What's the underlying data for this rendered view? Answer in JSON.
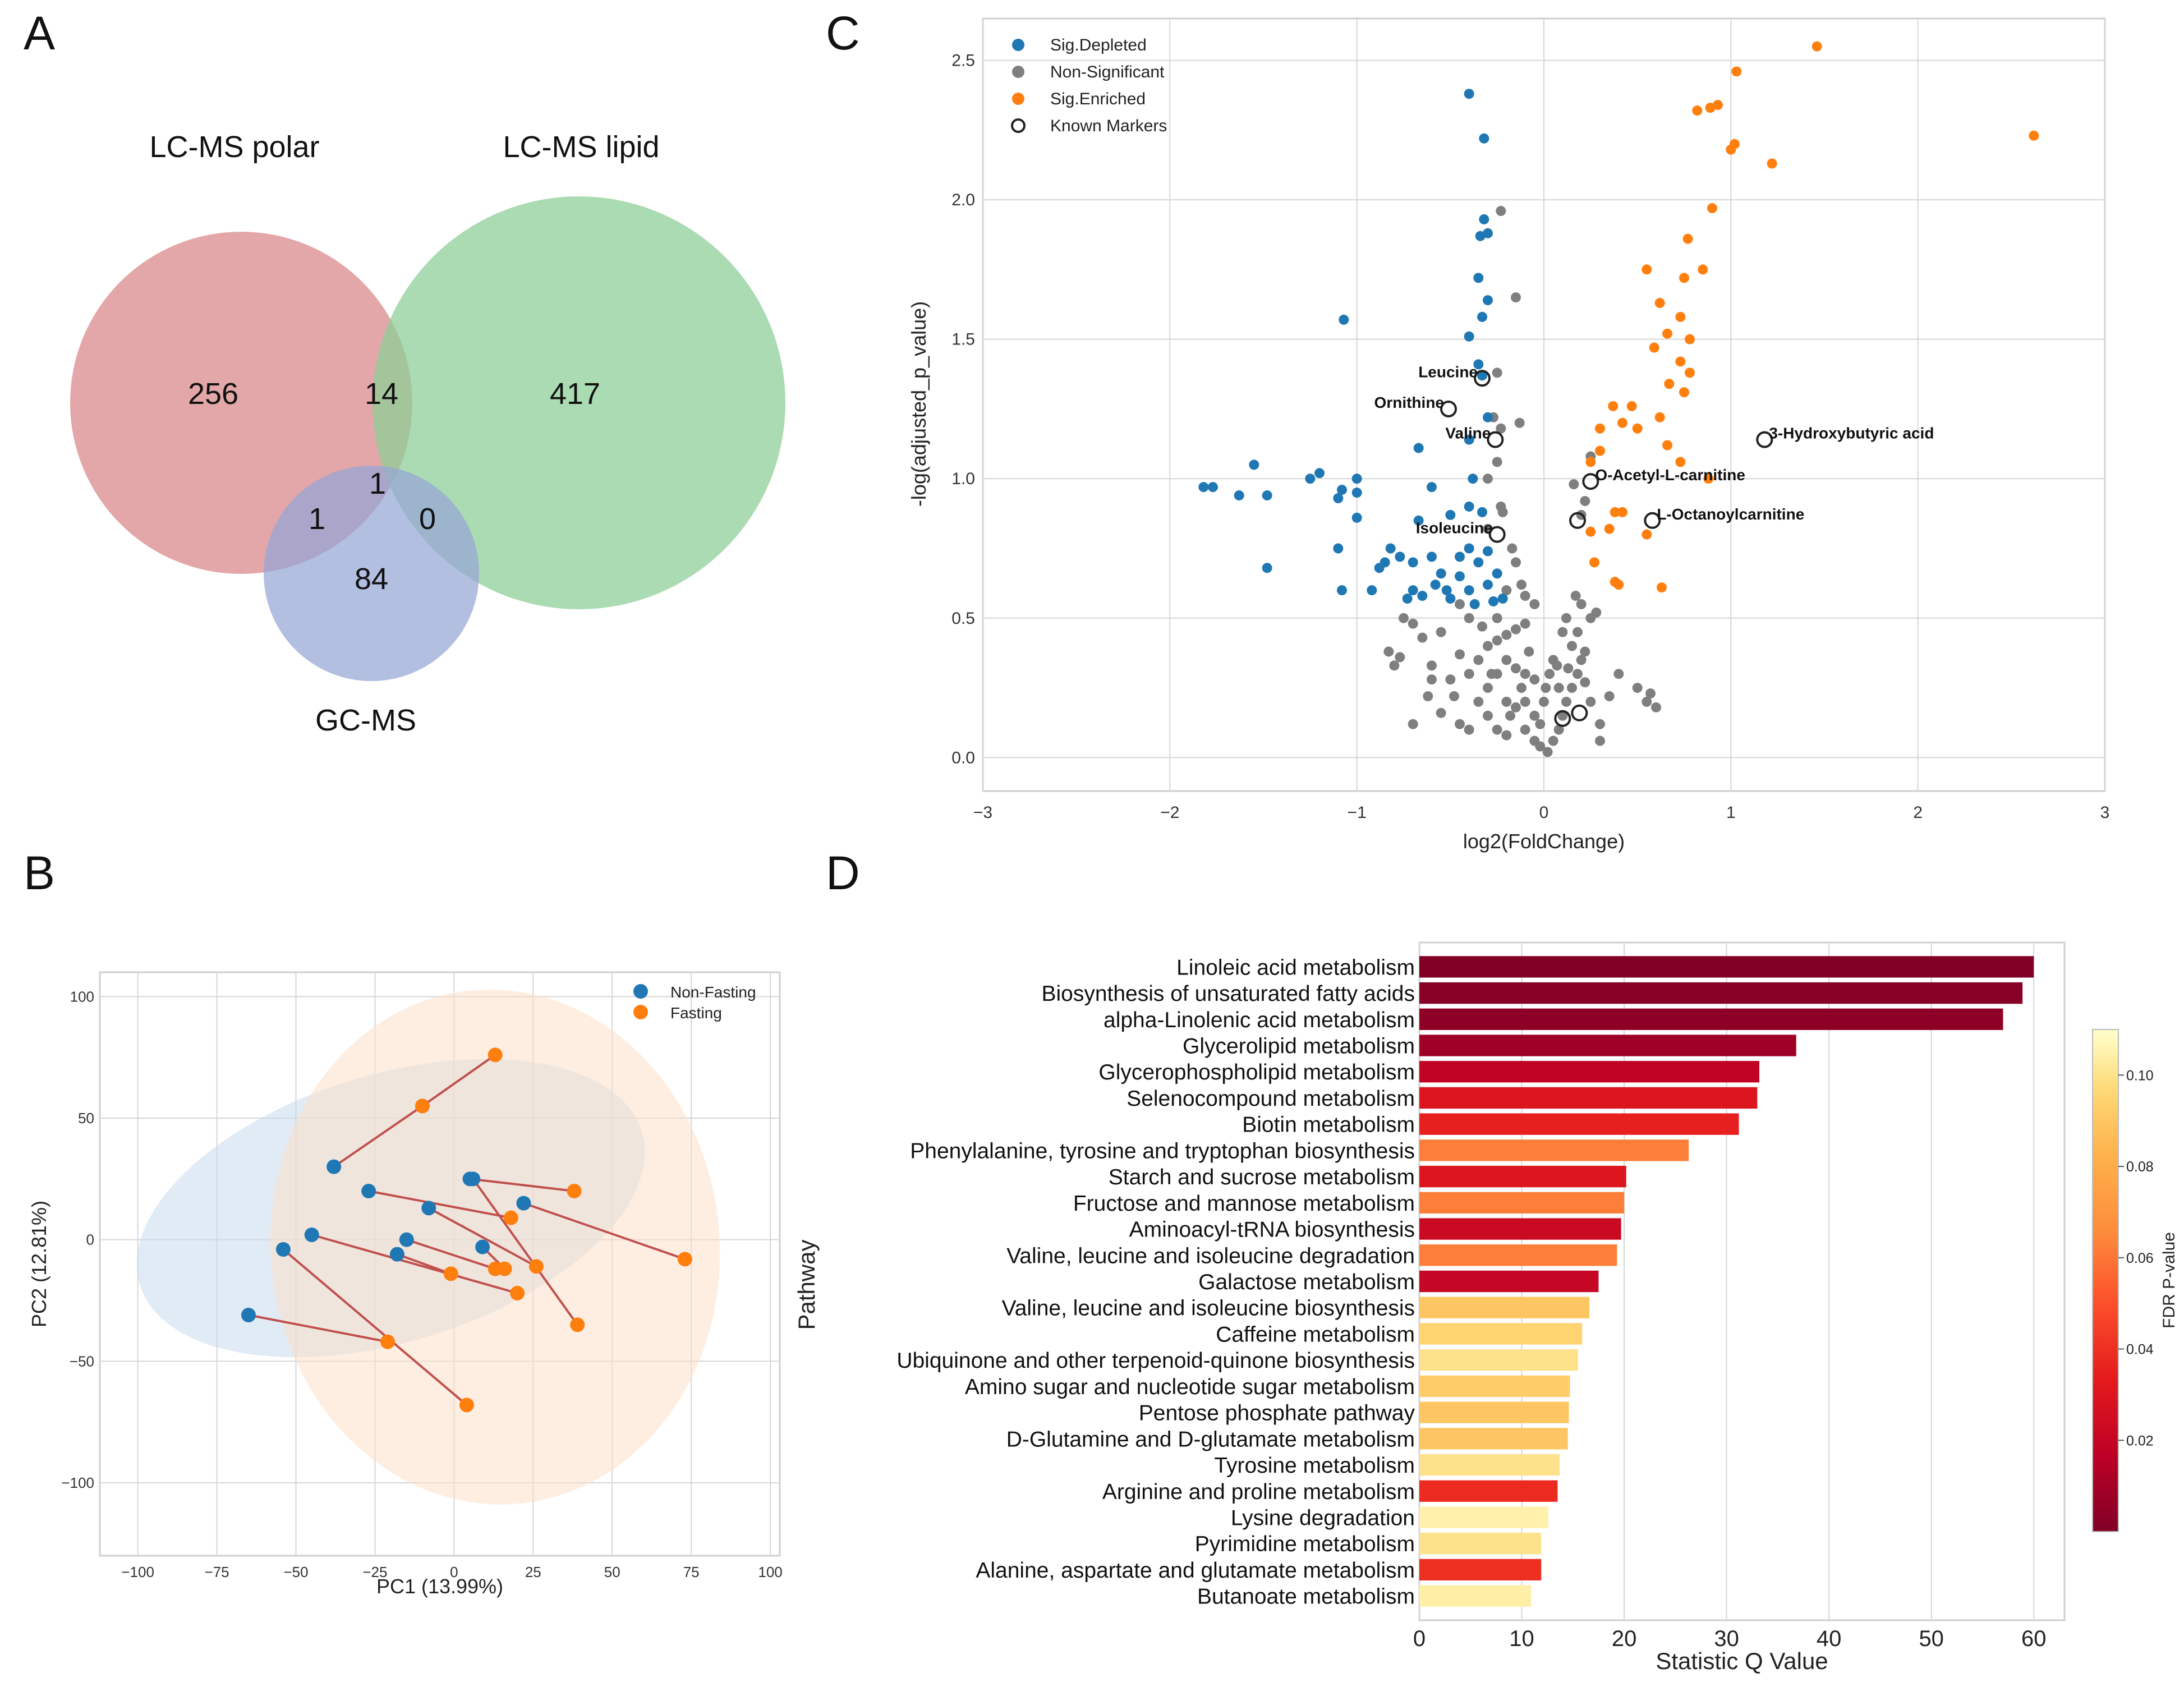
{
  "panel_labels": {
    "a": "A",
    "b": "B",
    "c": "C",
    "d": "D"
  },
  "colors": {
    "polar": "#d9898c",
    "lipid": "#8fcf98",
    "gcms": "#95a6d6",
    "depleted": "#1f77b4",
    "nonsig": "#7f7f7f",
    "enriched": "#ff7f0e",
    "line": "#c0504d",
    "grid": "#d6d6d6"
  },
  "chart_data": [
    {
      "id": "venn",
      "type": "venn",
      "sets": [
        {
          "name": "LC-MS polar"
        },
        {
          "name": "LC-MS lipid"
        },
        {
          "name": "GC-MS"
        }
      ],
      "regions": {
        "polar_only": "256",
        "lipid_only": "417",
        "gcms_only": "84",
        "polar_lipid": "14",
        "polar_gcms": "1",
        "lipid_gcms": "0",
        "all": "1"
      }
    },
    {
      "id": "pca",
      "type": "scatter",
      "xlabel": "PC1 (13.99%)",
      "ylabel": "PC2 (12.81%)",
      "xlim": [
        -112,
        103
      ],
      "ylim": [
        -130,
        110
      ],
      "xticks": [
        "−100",
        "−75",
        "−50",
        "−25",
        "0",
        "25",
        "50",
        "75",
        "100"
      ],
      "yticks": [
        "−100",
        "−50",
        "0",
        "50",
        "100"
      ],
      "legend": [
        "Non-Fasting",
        "Fasting"
      ],
      "ellipses": [
        {
          "group": "Non-Fasting",
          "cx": -20,
          "cy": 13,
          "rx": 83,
          "ry": 55,
          "angle": 17
        },
        {
          "group": "Fasting",
          "cx": 13,
          "cy": -3,
          "rx": 71,
          "ry": 106,
          "angle": 5
        }
      ],
      "pairs": [
        {
          "nf": [
            -10,
            55
          ],
          "f": [
            13,
            76
          ]
        },
        {
          "nf": [
            -38,
            30
          ],
          "f": [
            -10,
            55
          ]
        },
        {
          "nf": [
            -27,
            20
          ],
          "f": [
            18,
            9
          ]
        },
        {
          "nf": [
            6,
            25
          ],
          "f": [
            39,
            -35
          ]
        },
        {
          "nf": [
            22,
            15
          ],
          "f": [
            73,
            -8
          ]
        },
        {
          "nf": [
            5,
            25
          ],
          "f": [
            38,
            20
          ]
        },
        {
          "nf": [
            -8,
            13
          ],
          "f": [
            26,
            -11
          ]
        },
        {
          "nf": [
            -15,
            0
          ],
          "f": [
            13,
            -12
          ]
        },
        {
          "nf": [
            -45,
            2
          ],
          "f": [
            20,
            -22
          ]
        },
        {
          "nf": [
            -54,
            -4
          ],
          "f": [
            4,
            -68
          ]
        },
        {
          "nf": [
            -18,
            -6
          ],
          "f": [
            -1,
            -14
          ]
        },
        {
          "nf": [
            9,
            -3
          ],
          "f": [
            16,
            -12
          ]
        },
        {
          "nf": [
            -65,
            -31
          ],
          "f": [
            -21,
            -42
          ]
        }
      ]
    },
    {
      "id": "volcano",
      "type": "scatter",
      "xlabel": "log2(FoldChange)",
      "ylabel": "-log(adjusted_p_value)",
      "xlim": [
        -3,
        3
      ],
      "ylim": [
        -0.12,
        2.65
      ],
      "xticks": [
        -3,
        -2,
        -1,
        0,
        1,
        2,
        3
      ],
      "yticks": [
        0.0,
        0.5,
        1.0,
        1.5,
        2.0,
        2.5
      ],
      "legend": [
        "Sig.Depleted",
        "Non-Significant",
        "Sig.Enriched",
        "Known Markers"
      ],
      "depleted": [
        [
          -0.4,
          2.38
        ],
        [
          -0.32,
          2.22
        ],
        [
          -0.32,
          1.93
        ],
        [
          -0.3,
          1.88
        ],
        [
          -0.34,
          1.87
        ],
        [
          -0.35,
          1.72
        ],
        [
          -0.3,
          1.64
        ],
        [
          -1.07,
          1.57
        ],
        [
          -0.33,
          1.58
        ],
        [
          -0.4,
          1.51
        ],
        [
          -0.35,
          1.41
        ],
        [
          -0.33,
          1.37
        ],
        [
          -0.3,
          1.22
        ],
        [
          -0.67,
          1.11
        ],
        [
          -0.4,
          1.14
        ],
        [
          -1.55,
          1.05
        ],
        [
          -1.82,
          0.97
        ],
        [
          -1.77,
          0.97
        ],
        [
          -1.63,
          0.94
        ],
        [
          -1.48,
          0.94
        ],
        [
          -1.25,
          1.0
        ],
        [
          -1.2,
          1.02
        ],
        [
          -1.08,
          0.96
        ],
        [
          -1.0,
          1.0
        ],
        [
          -1.0,
          0.95
        ],
        [
          -1.1,
          0.93
        ],
        [
          -0.4,
          0.9
        ],
        [
          -0.6,
          0.97
        ],
        [
          -0.38,
          1.0
        ],
        [
          -0.5,
          0.87
        ],
        [
          -0.33,
          0.88
        ],
        [
          -1.0,
          0.86
        ],
        [
          -0.67,
          0.85
        ],
        [
          -1.1,
          0.75
        ],
        [
          -0.82,
          0.75
        ],
        [
          -0.77,
          0.72
        ],
        [
          -0.85,
          0.7
        ],
        [
          -0.7,
          0.7
        ],
        [
          -0.6,
          0.72
        ],
        [
          -0.45,
          0.72
        ],
        [
          -0.4,
          0.75
        ],
        [
          -0.35,
          0.7
        ],
        [
          -0.3,
          0.74
        ],
        [
          -0.55,
          0.66
        ],
        [
          -0.45,
          0.65
        ],
        [
          -0.58,
          0.62
        ],
        [
          -0.7,
          0.6
        ],
        [
          -0.65,
          0.58
        ],
        [
          -0.52,
          0.6
        ],
        [
          -0.4,
          0.6
        ],
        [
          -0.3,
          0.62
        ],
        [
          -0.37,
          0.55
        ],
        [
          -1.48,
          0.68
        ],
        [
          -1.08,
          0.6
        ],
        [
          -0.88,
          0.68
        ],
        [
          -0.73,
          0.57
        ],
        [
          -0.27,
          0.56
        ],
        [
          -0.22,
          0.57
        ],
        [
          -0.92,
          0.6
        ],
        [
          -0.5,
          0.57
        ],
        [
          -0.25,
          0.66
        ]
      ],
      "nonsig": [
        [
          -0.23,
          1.96
        ],
        [
          -0.15,
          1.65
        ],
        [
          -0.25,
          1.38
        ],
        [
          -0.27,
          1.22
        ],
        [
          -0.13,
          1.2
        ],
        [
          -0.23,
          1.18
        ],
        [
          -0.25,
          1.06
        ],
        [
          -0.3,
          1.0
        ],
        [
          -0.23,
          0.9
        ],
        [
          -0.3,
          0.82
        ],
        [
          -0.22,
          0.88
        ],
        [
          -0.17,
          0.75
        ],
        [
          -0.15,
          0.7
        ],
        [
          -0.12,
          0.62
        ],
        [
          -0.1,
          0.58
        ],
        [
          -0.05,
          0.55
        ],
        [
          -0.2,
          0.6
        ],
        [
          -0.25,
          0.5
        ],
        [
          -0.33,
          0.47
        ],
        [
          -0.4,
          0.5
        ],
        [
          -0.45,
          0.55
        ],
        [
          -0.55,
          0.45
        ],
        [
          -0.65,
          0.43
        ],
        [
          -0.7,
          0.48
        ],
        [
          -0.75,
          0.5
        ],
        [
          -0.83,
          0.38
        ],
        [
          -0.8,
          0.33
        ],
        [
          -0.77,
          0.36
        ],
        [
          -0.6,
          0.33
        ],
        [
          -0.6,
          0.28
        ],
        [
          -0.62,
          0.22
        ],
        [
          -0.5,
          0.28
        ],
        [
          -0.45,
          0.37
        ],
        [
          -0.4,
          0.3
        ],
        [
          -0.35,
          0.35
        ],
        [
          -0.3,
          0.4
        ],
        [
          -0.25,
          0.42
        ],
        [
          -0.2,
          0.44
        ],
        [
          -0.15,
          0.46
        ],
        [
          -0.1,
          0.48
        ],
        [
          -0.3,
          0.25
        ],
        [
          -0.25,
          0.3
        ],
        [
          -0.2,
          0.35
        ],
        [
          -0.15,
          0.32
        ],
        [
          -0.1,
          0.3
        ],
        [
          -0.05,
          0.28
        ],
        [
          -0.35,
          0.2
        ],
        [
          -0.3,
          0.15
        ],
        [
          -0.2,
          0.2
        ],
        [
          -0.15,
          0.18
        ],
        [
          -0.1,
          0.2
        ],
        [
          -0.05,
          0.15
        ],
        [
          -0.4,
          0.1
        ],
        [
          -0.25,
          0.1
        ],
        [
          -0.2,
          0.08
        ],
        [
          -0.1,
          0.1
        ],
        [
          -0.05,
          0.06
        ],
        [
          -0.02,
          0.04
        ],
        [
          0.02,
          0.02
        ],
        [
          0.05,
          0.06
        ],
        [
          0.08,
          0.1
        ],
        [
          0.1,
          0.15
        ],
        [
          0.12,
          0.2
        ],
        [
          0.15,
          0.25
        ],
        [
          0.18,
          0.3
        ],
        [
          0.2,
          0.35
        ],
        [
          0.15,
          0.4
        ],
        [
          0.1,
          0.45
        ],
        [
          0.12,
          0.5
        ],
        [
          0.18,
          0.45
        ],
        [
          0.22,
          0.38
        ],
        [
          0.25,
          0.5
        ],
        [
          0.2,
          0.55
        ],
        [
          0.17,
          0.58
        ],
        [
          0.22,
          0.27
        ],
        [
          0.25,
          0.2
        ],
        [
          0.3,
          0.12
        ],
        [
          0.35,
          0.22
        ],
        [
          0.4,
          0.3
        ],
        [
          0.5,
          0.25
        ],
        [
          0.55,
          0.2
        ],
        [
          0.6,
          0.18
        ],
        [
          0.57,
          0.23
        ],
        [
          0.3,
          0.06
        ],
        [
          0.08,
          0.25
        ],
        [
          0.05,
          0.35
        ],
        [
          0.03,
          0.3
        ],
        [
          -0.55,
          0.16
        ],
        [
          -0.7,
          0.12
        ],
        [
          -0.45,
          0.12
        ],
        [
          0.22,
          0.92
        ],
        [
          0.25,
          1.08
        ],
        [
          0.2,
          0.87
        ],
        [
          0.16,
          0.98
        ],
        [
          -0.08,
          0.38
        ],
        [
          0.0,
          0.2
        ],
        [
          -0.02,
          0.12
        ],
        [
          0.01,
          0.25
        ],
        [
          -0.12,
          0.25
        ],
        [
          -0.18,
          0.15
        ],
        [
          0.13,
          0.32
        ],
        [
          0.07,
          0.33
        ],
        [
          -0.28,
          0.3
        ],
        [
          -0.48,
          0.22
        ],
        [
          0.28,
          0.52
        ]
      ],
      "enriched": [
        [
          1.46,
          2.55
        ],
        [
          1.03,
          2.46
        ],
        [
          2.62,
          2.23
        ],
        [
          0.82,
          2.32
        ],
        [
          0.89,
          2.33
        ],
        [
          0.93,
          2.34
        ],
        [
          1.02,
          2.2
        ],
        [
          1.0,
          2.18
        ],
        [
          1.22,
          2.13
        ],
        [
          0.9,
          1.97
        ],
        [
          0.77,
          1.86
        ],
        [
          0.85,
          1.75
        ],
        [
          0.55,
          1.75
        ],
        [
          0.75,
          1.72
        ],
        [
          0.62,
          1.63
        ],
        [
          0.73,
          1.58
        ],
        [
          0.78,
          1.5
        ],
        [
          0.66,
          1.52
        ],
        [
          0.59,
          1.47
        ],
        [
          0.73,
          1.42
        ],
        [
          0.78,
          1.38
        ],
        [
          0.67,
          1.34
        ],
        [
          0.75,
          1.31
        ],
        [
          0.47,
          1.26
        ],
        [
          0.62,
          1.22
        ],
        [
          0.5,
          1.18
        ],
        [
          0.42,
          1.2
        ],
        [
          0.37,
          1.26
        ],
        [
          0.3,
          1.18
        ],
        [
          0.3,
          1.1
        ],
        [
          0.25,
          1.06
        ],
        [
          0.66,
          1.12
        ],
        [
          0.73,
          1.06
        ],
        [
          0.42,
          0.88
        ],
        [
          0.38,
          0.88
        ],
        [
          0.35,
          0.82
        ],
        [
          0.25,
          0.81
        ],
        [
          0.27,
          0.7
        ],
        [
          0.55,
          0.8
        ],
        [
          0.4,
          0.62
        ],
        [
          0.38,
          0.63
        ],
        [
          0.63,
          0.61
        ],
        [
          0.88,
          1.0
        ]
      ],
      "markers": [
        {
          "name": "Leucine",
          "x": -0.33,
          "y": 1.36
        },
        {
          "name": "Ornithine",
          "x": -0.51,
          "y": 1.25
        },
        {
          "name": "Valine",
          "x": -0.26,
          "y": 1.14
        },
        {
          "name": "Isoleucine",
          "x": -0.25,
          "y": 0.8
        },
        {
          "name": "3-Hydroxybutyric acid",
          "x": 1.18,
          "y": 1.14
        },
        {
          "name": "O-Acetyl-L-carnitine",
          "x": 0.25,
          "y": 0.99
        },
        {
          "name": "L-Octanoylcarnitine",
          "x": 0.58,
          "y": 0.85
        },
        {
          "name": "",
          "x": 0.18,
          "y": 0.85
        },
        {
          "name": "",
          "x": 0.1,
          "y": 0.14
        },
        {
          "name": "",
          "x": 0.19,
          "y": 0.16
        }
      ]
    },
    {
      "id": "pathway",
      "type": "bar",
      "xlabel": "Statistic Q Value",
      "ylabel": "Pathway",
      "xlim": [
        0,
        63
      ],
      "xticks": [
        0,
        10,
        20,
        30,
        40,
        50,
        60
      ],
      "colorbar_label": "FDR P-value",
      "colorbar_ticks": [
        "0.02",
        "0.04",
        "0.06",
        "0.08",
        "0.10"
      ],
      "colorbar_range": [
        0,
        0.11
      ],
      "categories": [
        "Linoleic acid metabolism",
        "Biosynthesis of unsaturated fatty acids",
        "alpha-Linolenic acid metabolism",
        "Glycerolipid metabolism",
        "Glycerophospholipid metabolism",
        "Selenocompound metabolism",
        "Biotin metabolism",
        "Phenylalanine, tyrosine and tryptophan biosynthesis",
        "Starch and sucrose metabolism",
        "Fructose and mannose metabolism",
        "Aminoacyl-tRNA biosynthesis",
        "Valine, leucine and isoleucine degradation",
        "Galactose metabolism",
        "Valine, leucine and isoleucine biosynthesis",
        "Caffeine metabolism",
        "Ubiquinone and other terpenoid-quinone biosynthesis",
        "Amino sugar and nucleotide sugar metabolism",
        "Pentose phosphate pathway",
        "D-Glutamine and D-glutamate metabolism",
        "Tyrosine metabolism",
        "Arginine and proline metabolism",
        "Lysine degradation",
        "Pyrimidine metabolism",
        "Alanine, aspartate and glutamate metabolism",
        "Butanoate metabolism"
      ],
      "values": [
        60,
        58.9,
        57,
        36.8,
        33.2,
        33,
        31.2,
        26.3,
        20.2,
        20,
        19.7,
        19.3,
        17.5,
        16.6,
        15.9,
        15.5,
        14.7,
        14.6,
        14.5,
        13.7,
        13.5,
        12.6,
        11.9,
        11.9,
        10.9
      ],
      "fdr": [
        0.0,
        0.002,
        0.004,
        0.008,
        0.018,
        0.03,
        0.035,
        0.062,
        0.03,
        0.062,
        0.022,
        0.062,
        0.02,
        0.09,
        0.095,
        0.1,
        0.092,
        0.09,
        0.09,
        0.1,
        0.038,
        0.105,
        0.1,
        0.04,
        0.104
      ]
    }
  ]
}
